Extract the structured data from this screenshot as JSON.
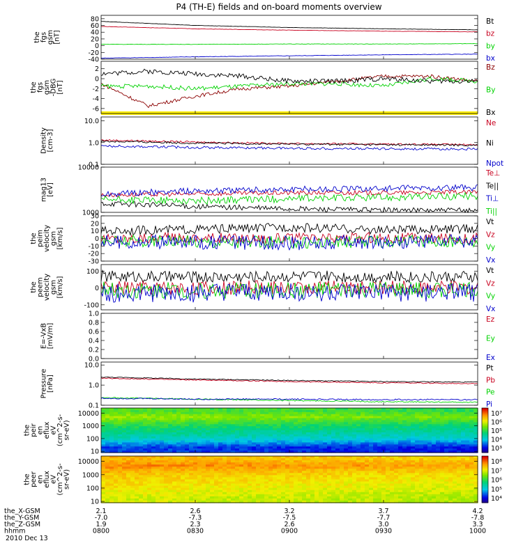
{
  "title": "P4 (TH-E) fields and on-board moments overview",
  "date": "2010 Dec 13",
  "colors": {
    "black": "#000000",
    "red": "#c8001e",
    "green": "#00d200",
    "blue": "#0000cc",
    "darkred": "#8b0000",
    "yellow": "#ffee00"
  },
  "footer": {
    "rows": [
      {
        "label": "the_X-GSM",
        "values": [
          "2.1",
          "2.6",
          "3.2",
          "3.7",
          "4.2"
        ]
      },
      {
        "label": "the_Y-GSM",
        "values": [
          "-7.0",
          "-7.3",
          "-7.5",
          "-7.7",
          "-7.8"
        ]
      },
      {
        "label": "the_Z-GSM",
        "values": [
          "1.9",
          "2.3",
          "2.6",
          "3.0",
          "3.3"
        ]
      },
      {
        "label": "hhmm",
        "values": [
          "0800",
          "0830",
          "0900",
          "0930",
          "1000"
        ]
      }
    ]
  },
  "chart_data": [
    {
      "id": "fgs",
      "type": "line",
      "ylabel": [
        "the",
        "fgs",
        "gsm",
        "[nT]"
      ],
      "scale": "linear",
      "ylim": [
        -40,
        90
      ],
      "yticks": [
        "80",
        "60",
        "40",
        "20",
        "0",
        "-20",
        "-40"
      ],
      "ytick_values": [
        80,
        60,
        40,
        20,
        0,
        -20,
        -40
      ],
      "x": [
        "0800",
        "0830",
        "0900",
        "0930",
        "1000"
      ],
      "series": [
        {
          "name": "Bt",
          "color": "#000000",
          "values": [
            72,
            60,
            54,
            50,
            47
          ]
        },
        {
          "name": "bz",
          "color": "#c8001e",
          "values": [
            57,
            50,
            46,
            43,
            41
          ]
        },
        {
          "name": "by",
          "color": "#00d200",
          "values": [
            4,
            4,
            5,
            5,
            6
          ]
        },
        {
          "name": "bx",
          "color": "#0000cc",
          "values": [
            -37,
            -33,
            -30,
            -27,
            -25
          ]
        }
      ]
    },
    {
      "id": "fgm_dbg",
      "type": "line",
      "ylabel": [
        "the",
        "fgs",
        "gsm",
        "-DBG",
        "[nT]"
      ],
      "scale": "linear",
      "ylim": [
        -7,
        3.5
      ],
      "yticks": [
        "2",
        "0",
        "-2",
        "-4",
        "-6"
      ],
      "ytick_values": [
        2,
        0,
        -2,
        -4,
        -6
      ],
      "x": [
        "0800",
        "0815",
        "0830",
        "0845",
        "0900",
        "0915",
        "0930",
        "0945",
        "1000"
      ],
      "series": [
        {
          "name": "Bz",
          "color": "#8b0000",
          "values": [
            -1,
            -5.5,
            -3.5,
            -2,
            -1.5,
            -0.5,
            0.5,
            0.5,
            -0.5
          ]
        },
        {
          "name": "By",
          "color": "#00d200",
          "values": [
            -1.5,
            -1.5,
            -2,
            -1.5,
            -1,
            -1,
            -1.5,
            0,
            -0.5
          ]
        },
        {
          "name": "Bx",
          "color": "#000000",
          "values": [
            1,
            1.5,
            1,
            0.5,
            -0.5,
            -0.5,
            0,
            -0.5,
            -0.5
          ]
        }
      ]
    },
    {
      "id": "density",
      "type": "line",
      "ylabel": [
        "Density",
        "[cm-3]"
      ],
      "scale": "log",
      "ylim": [
        0.1,
        15
      ],
      "yticks": [
        "10.0",
        "1.0",
        "0.1"
      ],
      "ytick_values": [
        10,
        1,
        0.1
      ],
      "x": [
        "0800",
        "0830",
        "0900",
        "0930",
        "1000"
      ],
      "series": [
        {
          "name": "Ne",
          "color": "#c8001e",
          "values": [
            1.3,
            1.05,
            0.9,
            0.85,
            0.8
          ]
        },
        {
          "name": "Ni",
          "color": "#000000",
          "values": [
            1.15,
            0.95,
            0.85,
            0.8,
            0.75
          ]
        },
        {
          "name": "Npot",
          "color": "#0000cc",
          "values": [
            0.7,
            0.6,
            0.55,
            0.52,
            0.5
          ]
        }
      ]
    },
    {
      "id": "temperature",
      "type": "line",
      "ylabel": [
        "mag13",
        "[eV]"
      ],
      "scale": "log",
      "ylim": [
        1000,
        10000
      ],
      "yticks": [
        "10000",
        "1000"
      ],
      "ytick_values": [
        10000,
        1000
      ],
      "x": [
        "0800",
        "0830",
        "0900",
        "0930",
        "1000"
      ],
      "series": [
        {
          "name": "Te⊥",
          "color": "#c8001e",
          "values": [
            2400,
            2550,
            2700,
            2700,
            2800
          ]
        },
        {
          "name": "Te||",
          "color": "#000000",
          "values": [
            1600,
            1350,
            1200,
            1120,
            1100
          ]
        },
        {
          "name": "Ti⊥",
          "color": "#0000cc",
          "values": [
            2500,
            3000,
            3200,
            3400,
            3500
          ]
        },
        {
          "name": "Ti||",
          "color": "#00d200",
          "values": [
            1900,
            1800,
            2000,
            2150,
            2300
          ]
        }
      ]
    },
    {
      "id": "peim_velocity",
      "type": "line",
      "ylabel": [
        "the",
        "peim",
        "velocity",
        "gsm",
        "[km/s]"
      ],
      "scale": "linear",
      "ylim": [
        -30,
        30
      ],
      "yticks": [
        "30",
        "20",
        "10",
        "0",
        "-10",
        "-20",
        "-30"
      ],
      "ytick_values": [
        30,
        20,
        10,
        0,
        -10,
        -20,
        -30
      ],
      "x": [
        "0800",
        "0830",
        "0900",
        "0930",
        "1000"
      ],
      "series": [
        {
          "name": "Vt",
          "color": "#000000",
          "values": [
            10,
            12,
            15,
            11,
            13
          ]
        },
        {
          "name": "Vz",
          "color": "#c8001e",
          "values": [
            0,
            1,
            0,
            1,
            0
          ]
        },
        {
          "name": "Vy",
          "color": "#00d200",
          "values": [
            -3,
            -4,
            -5,
            -4,
            -3
          ]
        },
        {
          "name": "Vx",
          "color": "#0000cc",
          "values": [
            -4,
            -5,
            -6,
            -5,
            -4
          ]
        }
      ]
    },
    {
      "id": "peem_velocity",
      "type": "line",
      "ylabel": [
        "the",
        "peem",
        "velocity",
        "gsm",
        "[km/s]"
      ],
      "scale": "linear",
      "ylim": [
        -130,
        140
      ],
      "yticks": [
        "100",
        "0",
        "-100"
      ],
      "ytick_values": [
        100,
        0,
        -100
      ],
      "x": [
        "0800",
        "0830",
        "0900",
        "0930",
        "1000"
      ],
      "series": [
        {
          "name": "Vt",
          "color": "#000000",
          "values": [
            70,
            65,
            70,
            68,
            66
          ]
        },
        {
          "name": "Vz",
          "color": "#c8001e",
          "values": [
            5,
            0,
            5,
            3,
            2
          ]
        },
        {
          "name": "Vy",
          "color": "#00d200",
          "values": [
            -10,
            -15,
            -12,
            -12,
            -10
          ]
        },
        {
          "name": "Vx",
          "color": "#0000cc",
          "values": [
            -30,
            -30,
            -25,
            -28,
            -30
          ]
        }
      ]
    },
    {
      "id": "efield",
      "type": "line",
      "ylabel": [
        "E=-VxB",
        "[mV/m]"
      ],
      "scale": "linear",
      "ylim": [
        0,
        1
      ],
      "yticks": [
        "1.0",
        "0.8",
        "0.6",
        "0.4",
        "0.2",
        "0.0"
      ],
      "ytick_values": [
        1,
        0.8,
        0.6,
        0.4,
        0.2,
        0
      ],
      "x": [],
      "series": [
        {
          "name": "Ez",
          "color": "#c8001e",
          "values": []
        },
        {
          "name": "Ey",
          "color": "#00d200",
          "values": []
        },
        {
          "name": "Ex",
          "color": "#0000cc",
          "values": []
        }
      ]
    },
    {
      "id": "pressure",
      "type": "line",
      "ylabel": [
        "Pressure",
        "[nPa]"
      ],
      "scale": "log",
      "ylim": [
        0.1,
        14
      ],
      "yticks": [
        "10.0",
        "1.0",
        "0.1"
      ],
      "ytick_values": [
        10,
        1,
        0.1
      ],
      "x": [
        "0800",
        "0830",
        "0900",
        "0930",
        "1000"
      ],
      "series": [
        {
          "name": "Pt",
          "color": "#000000",
          "values": [
            2.5,
            2.0,
            1.7,
            1.5,
            1.4
          ]
        },
        {
          "name": "Pb",
          "color": "#c8001e",
          "values": [
            2.2,
            1.8,
            1.5,
            1.3,
            1.2
          ]
        },
        {
          "name": "Pe",
          "color": "#00d200",
          "values": [
            0.24,
            0.2,
            0.17,
            0.15,
            0.14
          ]
        },
        {
          "name": "Pi",
          "color": "#0000cc",
          "values": [
            0.22,
            0.2,
            0.2,
            0.19,
            0.19
          ]
        }
      ]
    },
    {
      "id": "peir_spectrogram",
      "type": "heatmap",
      "ylabel": [
        "the",
        "peir",
        "en",
        "eflux",
        "eV",
        "(cm^2-s-",
        "sr-eV)"
      ],
      "scale": "log",
      "ylim": [
        8,
        25000
      ],
      "yticks": [
        "10000",
        "1000",
        "100",
        "10"
      ],
      "ytick_values": [
        10000,
        1000,
        100,
        10
      ],
      "colorbar": {
        "labels": [
          "10⁷",
          "10⁶",
          "10⁵",
          "10⁴",
          "10³"
        ],
        "log_min": 2.8,
        "log_max": 7.2
      },
      "y_profile": [
        {
          "e": 20,
          "log_flux": 3.6
        },
        {
          "e": 100,
          "log_flux": 4.4
        },
        {
          "e": 1000,
          "log_flux": 5.0
        },
        {
          "e": 5000,
          "log_flux": 5.6
        },
        {
          "e": 15000,
          "log_flux": 5.2
        }
      ]
    },
    {
      "id": "peer_spectrogram",
      "type": "heatmap",
      "ylabel": [
        "the",
        "peer",
        "en",
        "eflux",
        "eV",
        "(cm^2-s-",
        "sr-eV)"
      ],
      "scale": "log",
      "ylim": [
        8,
        25000
      ],
      "yticks": [
        "10000",
        "1000",
        "100",
        "10"
      ],
      "ytick_values": [
        10000,
        1000,
        100,
        10
      ],
      "colorbar": {
        "labels": [
          "10⁸",
          "10⁷",
          "10⁶",
          "10⁵",
          "10⁴"
        ],
        "log_min": 3.6,
        "log_max": 8.2
      },
      "y_profile": [
        {
          "e": 20,
          "log_flux": 6.8
        },
        {
          "e": 100,
          "log_flux": 7.0
        },
        {
          "e": 1000,
          "log_flux": 7.2
        },
        {
          "e": 5000,
          "log_flux": 7.6
        },
        {
          "e": 15000,
          "log_flux": 7.3
        }
      ]
    }
  ]
}
